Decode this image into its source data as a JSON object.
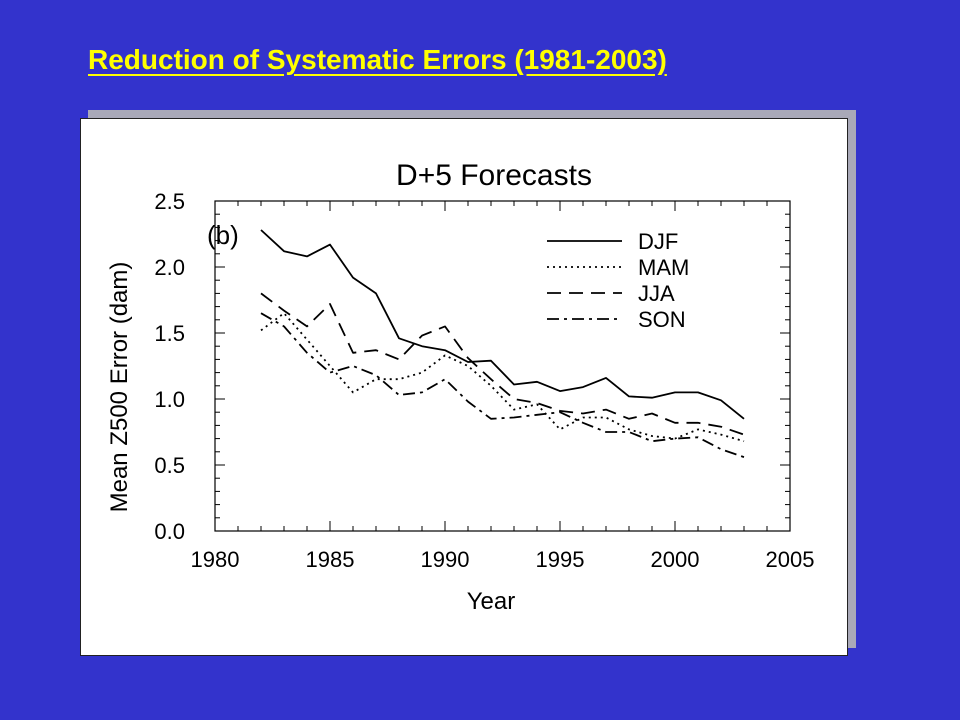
{
  "slide": {
    "title": "Reduction of Systematic Errors (1981-2003)"
  },
  "chart_data": {
    "type": "line",
    "title": "D+5 Forecasts",
    "panel_label": "(b)",
    "xlabel": "Year",
    "ylabel": "Mean Z500 Error (dam)",
    "xlim": [
      1980,
      2005
    ],
    "ylim": [
      0.0,
      2.5
    ],
    "x_ticks": [
      "1980",
      "1985",
      "1990",
      "1995",
      "2000",
      "2005"
    ],
    "y_ticks": [
      "0.0",
      "0.5",
      "1.0",
      "1.5",
      "2.0",
      "2.5"
    ],
    "grid": false,
    "legend_position": "top-right",
    "x": [
      1982,
      1983,
      1984,
      1985,
      1986,
      1987,
      1988,
      1989,
      1990,
      1991,
      1992,
      1993,
      1994,
      1995,
      1996,
      1997,
      1998,
      1999,
      2000,
      2001,
      2002,
      2003
    ],
    "series": [
      {
        "name": "DJF",
        "style": "solid",
        "values": [
          2.28,
          2.12,
          2.08,
          2.17,
          1.92,
          1.8,
          1.46,
          1.4,
          1.37,
          1.28,
          1.29,
          1.11,
          1.13,
          1.06,
          1.09,
          1.16,
          1.02,
          1.01,
          1.05,
          1.05,
          0.99,
          0.85
        ]
      },
      {
        "name": "MAM",
        "style": "dotted",
        "values": [
          1.52,
          1.65,
          1.45,
          1.25,
          1.05,
          1.15,
          1.15,
          1.2,
          1.33,
          1.25,
          1.1,
          0.92,
          0.96,
          0.77,
          0.86,
          0.86,
          0.77,
          0.72,
          0.7,
          0.77,
          0.73,
          0.68
        ]
      },
      {
        "name": "JJA",
        "style": "dashed",
        "values": [
          1.8,
          1.67,
          1.55,
          1.72,
          1.35,
          1.37,
          1.3,
          1.48,
          1.55,
          1.31,
          1.15,
          1.0,
          0.97,
          0.91,
          0.89,
          0.92,
          0.85,
          0.89,
          0.82,
          0.82,
          0.79,
          0.73
        ]
      },
      {
        "name": "SON",
        "style": "dashdot",
        "values": [
          1.65,
          1.55,
          1.35,
          1.2,
          1.25,
          1.18,
          1.03,
          1.05,
          1.15,
          0.98,
          0.85,
          0.86,
          0.88,
          0.9,
          0.82,
          0.75,
          0.75,
          0.68,
          0.7,
          0.71,
          0.62,
          0.56
        ]
      }
    ]
  }
}
